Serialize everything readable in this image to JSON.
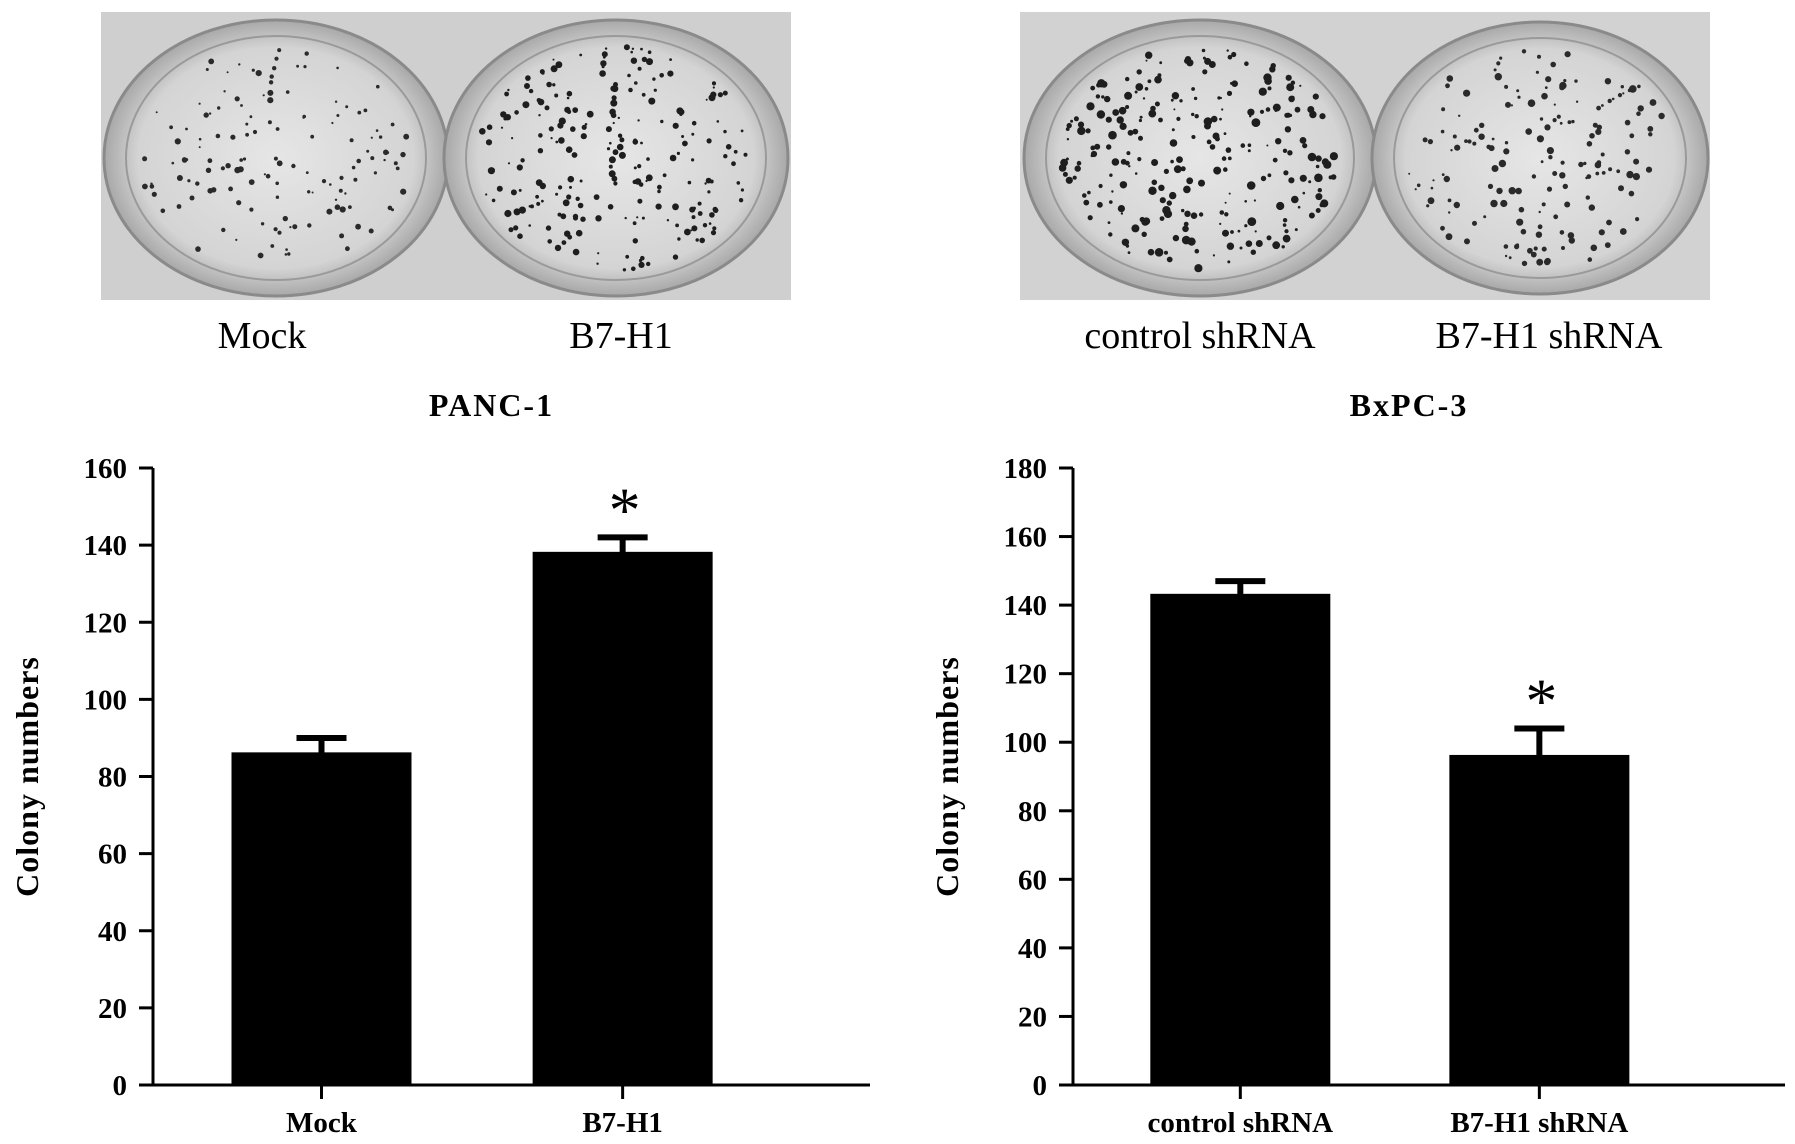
{
  "photo_panels": [
    {
      "labels": [
        "Mock",
        "B7-H1"
      ]
    },
    {
      "labels": [
        "control shRNA",
        "B7-H1 shRNA"
      ]
    }
  ],
  "chart_data": [
    {
      "type": "bar",
      "title": "PANC-1",
      "ylabel": "Colony numbers",
      "xlabel": "",
      "categories": [
        "Mock",
        "B7-H1"
      ],
      "values": [
        86,
        138
      ],
      "errors": [
        4,
        4
      ],
      "significance": [
        "",
        "*"
      ],
      "ylim": [
        0,
        160
      ],
      "yticks": [
        0,
        20,
        40,
        60,
        80,
        100,
        120,
        140,
        160
      ],
      "bar_color": "#000000"
    },
    {
      "type": "bar",
      "title": "BxPC-3",
      "ylabel": "Colony numbers",
      "xlabel": "",
      "categories": [
        "control shRNA",
        "B7-H1 shRNA"
      ],
      "values": [
        143,
        96
      ],
      "errors": [
        4,
        8
      ],
      "significance": [
        "",
        "*"
      ],
      "ylim": [
        0,
        180
      ],
      "yticks": [
        0,
        20,
        40,
        60,
        80,
        100,
        120,
        140,
        160,
        180
      ],
      "bar_color": "#000000"
    }
  ]
}
